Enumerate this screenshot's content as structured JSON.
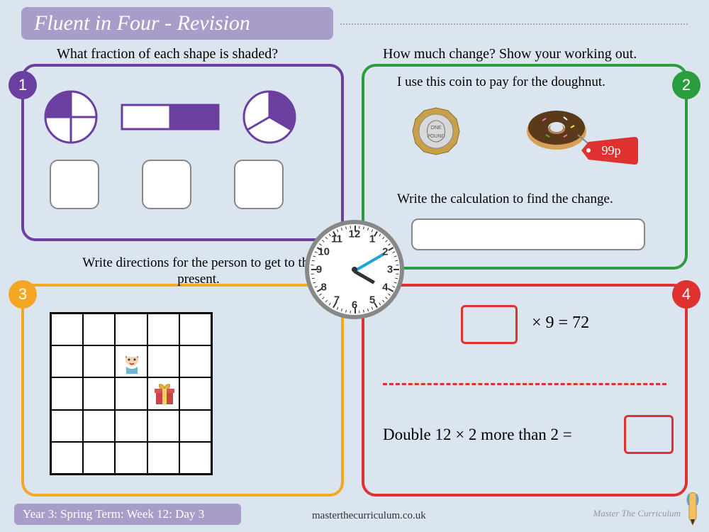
{
  "title": "Fluent in Four - Revision",
  "badges": {
    "b1": "1",
    "b2": "2",
    "b3": "3",
    "b4": "4"
  },
  "q1": {
    "prompt": "What fraction of each shape is shaded?"
  },
  "q2": {
    "prompt": "How much change? Show your working out.",
    "sub": "I use this coin to pay for the doughnut.",
    "instr": "Write the calculation to find the change.",
    "price": "99p"
  },
  "q3": {
    "prompt": "Write directions for the person to get to the present."
  },
  "q4": {
    "eq1": "× 9 = 72",
    "eq2": "Double 12 × 2 more than 2 ="
  },
  "clock": {
    "numbers": [
      "12",
      "1",
      "2",
      "3",
      "4",
      "5",
      "6",
      "7",
      "8",
      "9",
      "10",
      "11"
    ],
    "hour_angle": 30,
    "minute_angle": -30
  },
  "footer": {
    "label": "Year 3: Spring Term: Week 12: Day 3",
    "url": "masterthecurriculum.co.uk",
    "brand": "Master The Curriculum"
  },
  "colors": {
    "bg": "#dae5f0",
    "purple": "#6b3fa0",
    "green": "#2a9d3f",
    "orange": "#f5a623",
    "red": "#e03131",
    "lilac": "#a89cc8"
  }
}
